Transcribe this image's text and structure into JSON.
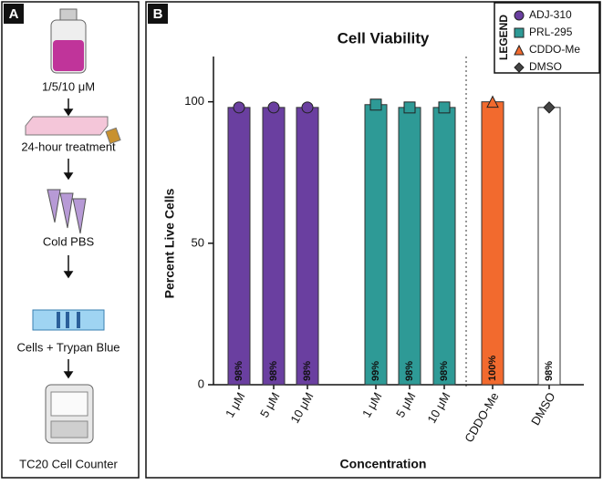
{
  "panel_a": {
    "label": "A",
    "steps": [
      "1/5/10 μM",
      "24-hour treatment",
      "Cold PBS",
      "Cells + Trypan Blue",
      "TC20 Cell Counter"
    ]
  },
  "panel_b_label": "B",
  "chart_data": {
    "type": "bar",
    "title": "Cell Viability",
    "y_label": "Percent Live Cells",
    "x_label": "Concentration",
    "categories": [
      "1 μM",
      "5 μM",
      "10 μM",
      "1 μM",
      "5 μM",
      "10 μM",
      "CDDO-Me",
      "DMSO"
    ],
    "series": [
      {
        "name": "ADJ-310",
        "color": "#6a3fa0",
        "marker": "circle",
        "values": [
          98,
          98,
          98,
          null,
          null,
          null,
          null,
          null
        ],
        "value_labels": [
          "98%",
          "98%",
          "98%",
          null,
          null,
          null,
          null,
          null
        ]
      },
      {
        "name": "PRL-295",
        "color": "#2e9a96",
        "marker": "square",
        "values": [
          null,
          null,
          null,
          99,
          98,
          98,
          null,
          null
        ],
        "value_labels": [
          null,
          null,
          null,
          "99%",
          "98%",
          "98%",
          null,
          null
        ]
      },
      {
        "name": "CDDO-Me",
        "color": "#f26a2e",
        "marker": "triangle",
        "values": [
          null,
          null,
          null,
          null,
          null,
          null,
          100,
          null
        ],
        "value_labels": [
          null,
          null,
          null,
          null,
          null,
          null,
          "100%",
          null
        ]
      },
      {
        "name": "DMSO",
        "color": "#ffffff",
        "marker": "diamond",
        "values": [
          null,
          null,
          null,
          null,
          null,
          null,
          null,
          98
        ],
        "value_labels": [
          null,
          null,
          null,
          null,
          null,
          null,
          null,
          "98%"
        ]
      }
    ],
    "legend_title": "LEGEND",
    "legend_position": "upper right",
    "ylim": [
      0,
      116
    ],
    "yticks": [
      0,
      50,
      100
    ],
    "grid": false
  }
}
